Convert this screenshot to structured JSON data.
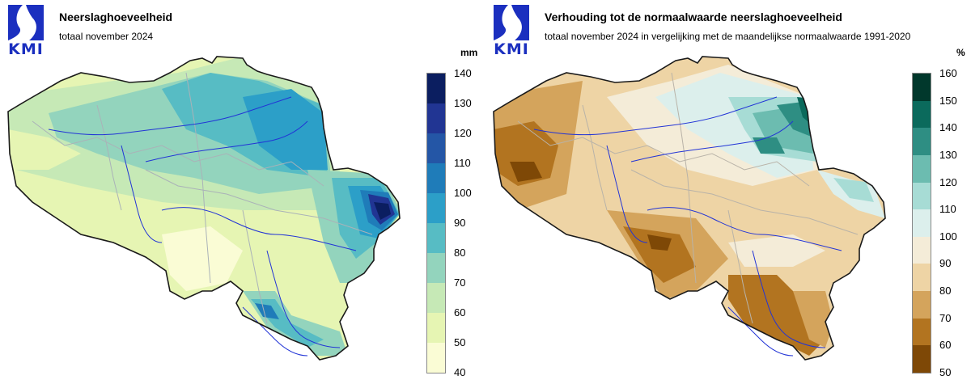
{
  "logo": {
    "text": "KMI",
    "brand_color": "#1b2fbf"
  },
  "left": {
    "title": "Neerslaghoeveelheid",
    "subtitle": "totaal november 2024",
    "unit": "mm",
    "legend": {
      "ticks": [
        "140",
        "130",
        "120",
        "110",
        "100",
        "90",
        "80",
        "70",
        "60",
        "50",
        "40"
      ],
      "colors": [
        "#0b1e60",
        "#213593",
        "#2456a6",
        "#1f7cb9",
        "#2c9fc8",
        "#57bcc4",
        "#93d4bd",
        "#c6e9b6",
        "#e6f5b3",
        "#fafcd5"
      ]
    }
  },
  "right": {
    "title": "Verhouding tot de normaalwaarde neerslaghoeveelheid",
    "subtitle": "totaal november 2024 in vergelijking met de maandelijkse normaalwaarde 1991-2020",
    "unit": "%",
    "legend": {
      "ticks": [
        "160",
        "150",
        "140",
        "130",
        "120",
        "110",
        "100",
        "90",
        "80",
        "70",
        "60",
        "50"
      ],
      "colors": [
        "#01382c",
        "#0b6a5c",
        "#2e8e83",
        "#6cbcb0",
        "#a7dcd5",
        "#dcefec",
        "#f4ecd8",
        "#eed4a5",
        "#d4a45c",
        "#b27420",
        "#7e4806"
      ]
    }
  }
}
